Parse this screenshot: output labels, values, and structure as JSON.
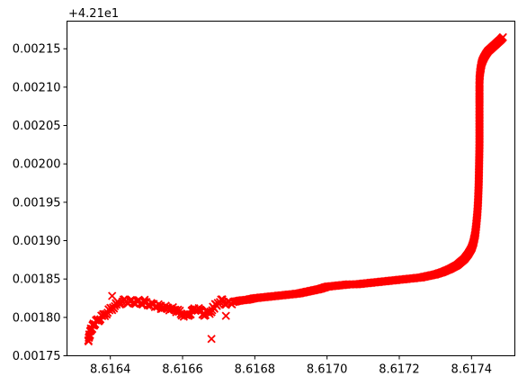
{
  "chart_data": {
    "type": "scatter",
    "title": "",
    "xlabel": "",
    "ylabel": "",
    "y_offset_label": "+4.21e1",
    "y_offset": 42.1,
    "marker": "x",
    "marker_color": "#ff0000",
    "grid": false,
    "legend": "none",
    "xlim": [
      8.61628,
      8.61752
    ],
    "ylim": [
      0.00175,
      0.002186
    ],
    "x_ticks": [
      {
        "value": 8.6164,
        "label": "8.6164"
      },
      {
        "value": 8.6166,
        "label": "8.6166"
      },
      {
        "value": 8.6168,
        "label": "8.6168"
      },
      {
        "value": 8.617,
        "label": "8.6170"
      },
      {
        "value": 8.6172,
        "label": "8.6172"
      },
      {
        "value": 8.6174,
        "label": "8.6174"
      }
    ],
    "y_ticks": [
      {
        "value": 0.00175,
        "label": "0.00175"
      },
      {
        "value": 0.0018,
        "label": "0.00180"
      },
      {
        "value": 0.00185,
        "label": "0.00185"
      },
      {
        "value": 0.0019,
        "label": "0.00190"
      },
      {
        "value": 0.00195,
        "label": "0.00195"
      },
      {
        "value": 0.002,
        "label": "0.00200"
      },
      {
        "value": 0.00205,
        "label": "0.00205"
      },
      {
        "value": 0.0021,
        "label": "0.00210"
      },
      {
        "value": 0.00215,
        "label": "0.00215"
      }
    ],
    "series": [
      {
        "x": [
          8.616339,
          8.616341,
          8.616343,
          8.616345,
          8.616348,
          8.616352,
          8.616356,
          8.616362,
          8.61637,
          8.61638,
          8.61639,
          8.6164,
          8.61641,
          8.61642,
          8.61643,
          8.61644,
          8.61645,
          8.61646,
          8.61647,
          8.61648,
          8.61649,
          8.6165,
          8.61651,
          8.61652,
          8.61653,
          8.61654,
          8.61655,
          8.61656,
          8.61657,
          8.61658,
          8.61659,
          8.6166,
          8.61661,
          8.61662,
          8.61663,
          8.61664,
          8.61665,
          8.61666,
          8.61667,
          8.61668,
          8.61669,
          8.6167,
          8.61671,
          8.61672,
          8.61673,
          8.61674,
          8.61675,
          8.61676,
          8.61678,
          8.6168,
          8.61682,
          8.61684,
          8.61686,
          8.61688,
          8.6169,
          8.61692,
          8.61694,
          8.61696,
          8.61698,
          8.617,
          8.61702,
          8.61704,
          8.61706,
          8.61708,
          8.6171,
          8.61712,
          8.61714,
          8.61716,
          8.61718,
          8.6172,
          8.61722,
          8.61724,
          8.61726,
          8.61728,
          8.6173,
          8.61732,
          8.61734,
          8.61736,
          8.61737,
          8.61738,
          8.61739,
          8.6174,
          8.617405,
          8.61741,
          8.617413,
          8.617416,
          8.617418,
          8.61742,
          8.617421,
          8.617422,
          8.617422,
          8.617422,
          8.617422,
          8.617422,
          8.617422,
          8.617422,
          8.617422,
          8.617422,
          8.617422,
          8.617423,
          8.617424,
          8.617426,
          8.617428,
          8.617431,
          8.617435,
          8.61744,
          8.617446,
          8.617453,
          8.61746,
          8.617467,
          8.617474,
          8.617481,
          8.617487,
          8.616405,
          8.616495,
          8.61654,
          8.61668,
          8.61672,
          8.61635
        ],
        "y": [
          0.00177,
          0.001774,
          0.001778,
          0.001782,
          0.001786,
          0.001789,
          0.001792,
          0.001795,
          0.001798,
          0.001802,
          0.001806,
          0.00181,
          0.001814,
          0.001818,
          0.00182,
          0.001821,
          0.001821,
          0.00182,
          0.00182,
          0.00182,
          0.001819,
          0.001818,
          0.001817,
          0.001816,
          0.001815,
          0.001814,
          0.001813,
          0.001812,
          0.001811,
          0.00181,
          0.001807,
          0.001804,
          0.001802,
          0.001805,
          0.001809,
          0.001812,
          0.001808,
          0.001804,
          0.001805,
          0.001809,
          0.001815,
          0.00182,
          0.001821,
          0.001819,
          0.001818,
          0.00182,
          0.001821,
          0.001822,
          0.001823,
          0.001825,
          0.001826,
          0.001827,
          0.001828,
          0.001829,
          0.00183,
          0.001831,
          0.001833,
          0.001835,
          0.001837,
          0.00184,
          0.001841,
          0.001842,
          0.001843,
          0.001843,
          0.001844,
          0.001845,
          0.001846,
          0.001847,
          0.001848,
          0.001849,
          0.00185,
          0.001851,
          0.001852,
          0.001854,
          0.001856,
          0.001859,
          0.001863,
          0.001868,
          0.001872,
          0.001876,
          0.001882,
          0.00189,
          0.001897,
          0.001908,
          0.00192,
          0.001935,
          0.00195,
          0.001975,
          0.002,
          0.002025,
          0.002045,
          0.00206,
          0.00207,
          0.002078,
          0.002085,
          0.002092,
          0.002098,
          0.002104,
          0.002109,
          0.002115,
          0.00212,
          0.002126,
          0.002131,
          0.002135,
          0.002139,
          0.002143,
          0.002147,
          0.00215,
          0.002153,
          0.002156,
          0.002159,
          0.002162,
          0.002165,
          0.001828,
          0.001823,
          0.001811,
          0.001772,
          0.001802,
          0.001785
        ]
      }
    ]
  }
}
